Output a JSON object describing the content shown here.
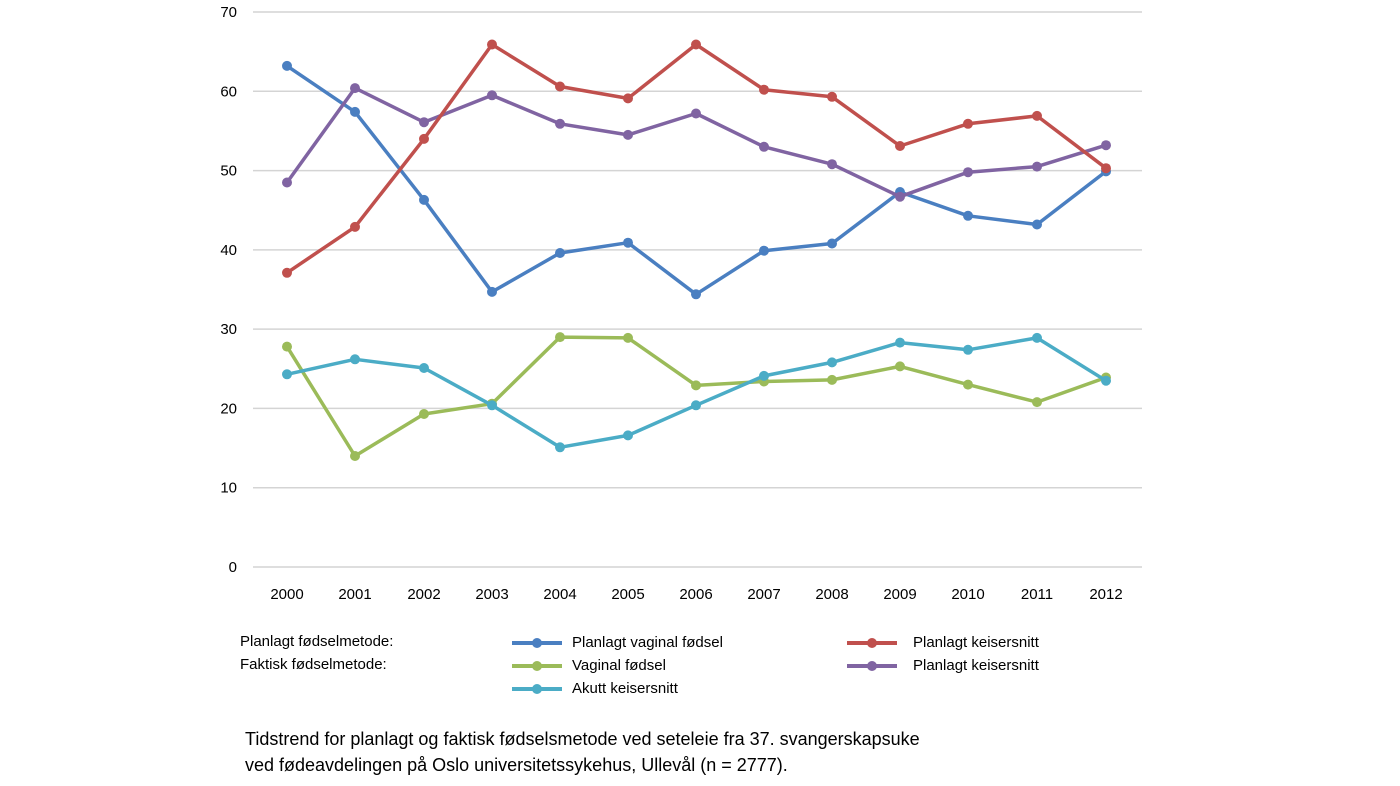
{
  "chart_data": {
    "type": "line",
    "title": "",
    "xlabel": "",
    "ylabel": "",
    "ylim": [
      0,
      70
    ],
    "yticks": [
      0,
      10,
      20,
      30,
      40,
      50,
      60,
      70
    ],
    "grid": true,
    "categories": [
      "2000",
      "2001",
      "2002",
      "2003",
      "2004",
      "2005",
      "2006",
      "2007",
      "2008",
      "2009",
      "2010",
      "2011",
      "2012"
    ],
    "series": [
      {
        "name": "Planlagt vaginal fødsel",
        "group": "Planlagt fødselmetode",
        "color": "#4a7fc1",
        "values": [
          63.2,
          57.4,
          46.3,
          34.7,
          39.6,
          40.9,
          34.4,
          39.9,
          40.8,
          47.3,
          44.3,
          43.2,
          49.9
        ]
      },
      {
        "name": "Planlagt keisersnitt",
        "group": "Planlagt fødselmetode",
        "color": "#c0504d",
        "values": [
          37.1,
          42.9,
          54.0,
          65.9,
          60.6,
          59.1,
          65.9,
          60.2,
          59.3,
          53.1,
          55.9,
          56.9,
          50.3
        ]
      },
      {
        "name": "Vaginal fødsel",
        "group": "Faktisk fødselmetode",
        "color": "#9bbb59",
        "values": [
          27.8,
          14.0,
          19.3,
          20.6,
          29.0,
          28.9,
          22.9,
          23.4,
          23.6,
          25.3,
          23.0,
          20.8,
          23.9
        ]
      },
      {
        "name": "Planlagt keisersnitt",
        "group": "Faktisk fødselmetode",
        "color": "#8064a2",
        "values": [
          48.5,
          60.4,
          56.1,
          59.5,
          55.9,
          54.5,
          57.2,
          53.0,
          50.8,
          46.7,
          49.8,
          50.5,
          53.2
        ]
      },
      {
        "name": "Akutt keisersnitt",
        "group": "Faktisk fødselmetode",
        "color": "#4bacc6",
        "values": [
          24.3,
          26.2,
          25.1,
          20.4,
          15.1,
          16.6,
          20.4,
          24.1,
          25.8,
          28.3,
          27.4,
          28.9,
          23.5
        ]
      }
    ]
  },
  "legend": {
    "row1_label": "Planlagt fødselmetode:",
    "row2_label": "Faktisk fødselmetode:"
  },
  "caption": {
    "line1": "Tidstrend for planlagt og faktisk fødselsmetode ved seteleie fra 37. svangerskapsuke",
    "line2": "ved fødeavdelingen på Oslo universitetssykehus, Ullevål (n = 2777)."
  }
}
